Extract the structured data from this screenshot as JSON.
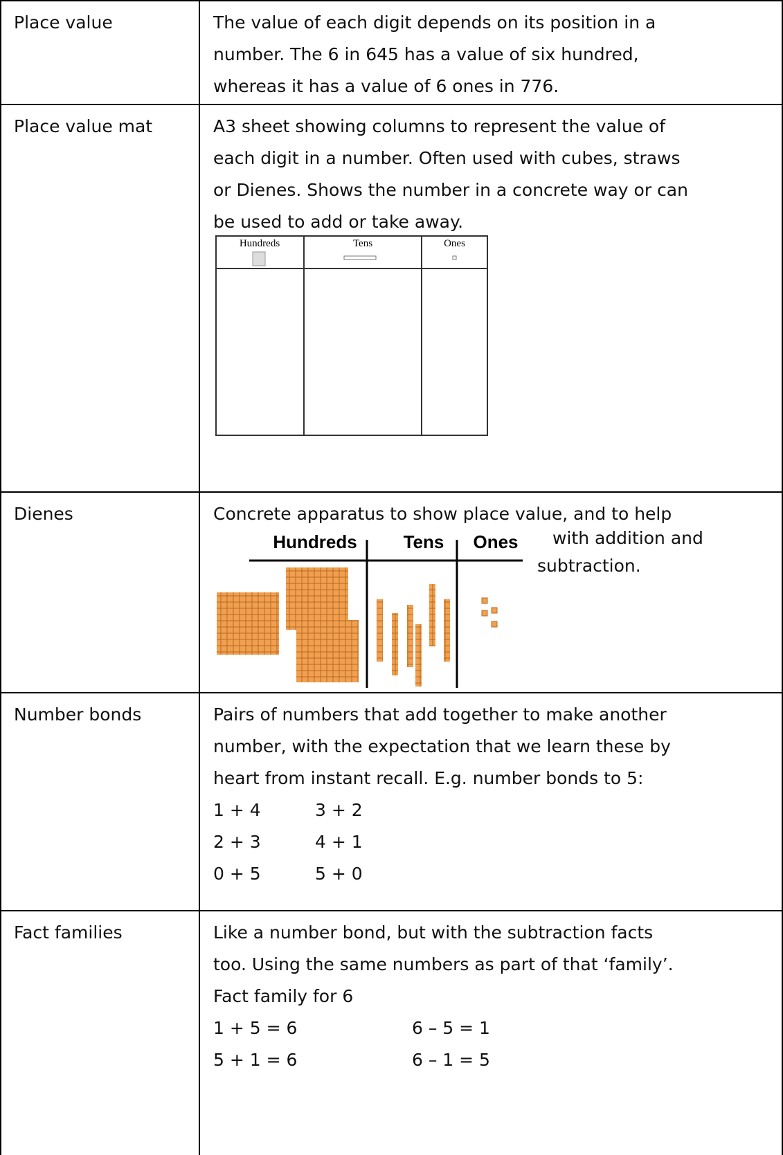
{
  "table": {
    "rows": [
      {
        "term": "Place value",
        "lines": [
          "The value of each digit depends on its position in a",
          "number. The 6 in 645 has a value of six hundred,",
          "whereas it has a value of 6 ones in 776."
        ]
      },
      {
        "term": "Place value mat",
        "lines": [
          "A3 sheet showing columns to represent the value of",
          "each digit in a number. Often used with cubes, straws",
          "or Dienes. Shows the number in a concrete way or can",
          "be used to add or take away."
        ],
        "mat_headers": [
          "Hundreds",
          "Tens",
          "Ones"
        ]
      },
      {
        "term": "Dienes",
        "lines": [
          "Concrete apparatus to show place value, and to help"
        ],
        "side_lines": [
          "with addition and",
          "subtraction."
        ],
        "chart_headers": [
          "Hundreds",
          "Tens",
          "Ones"
        ]
      },
      {
        "term": "Number bonds",
        "lines": [
          "Pairs of numbers that add together to make another",
          "number, with the expectation that we learn these by",
          "heart from instant recall. E.g. number bonds to 5:"
        ],
        "pairs": [
          [
            "1 + 4",
            "3 + 2"
          ],
          [
            "2 + 3",
            "4 + 1"
          ],
          [
            "0 + 5",
            "5 + 0"
          ]
        ]
      },
      {
        "term": "Fact families",
        "lines": [
          "Like a number bond, but with the subtraction facts",
          "too. Using the same numbers as part of that ‘family’.",
          "Fact family for 6"
        ],
        "pairs": [
          [
            "1 + 5 = 6",
            "6 – 5 = 1"
          ],
          [
            "5 + 1 = 6",
            "6 – 1 = 5"
          ]
        ]
      }
    ]
  }
}
